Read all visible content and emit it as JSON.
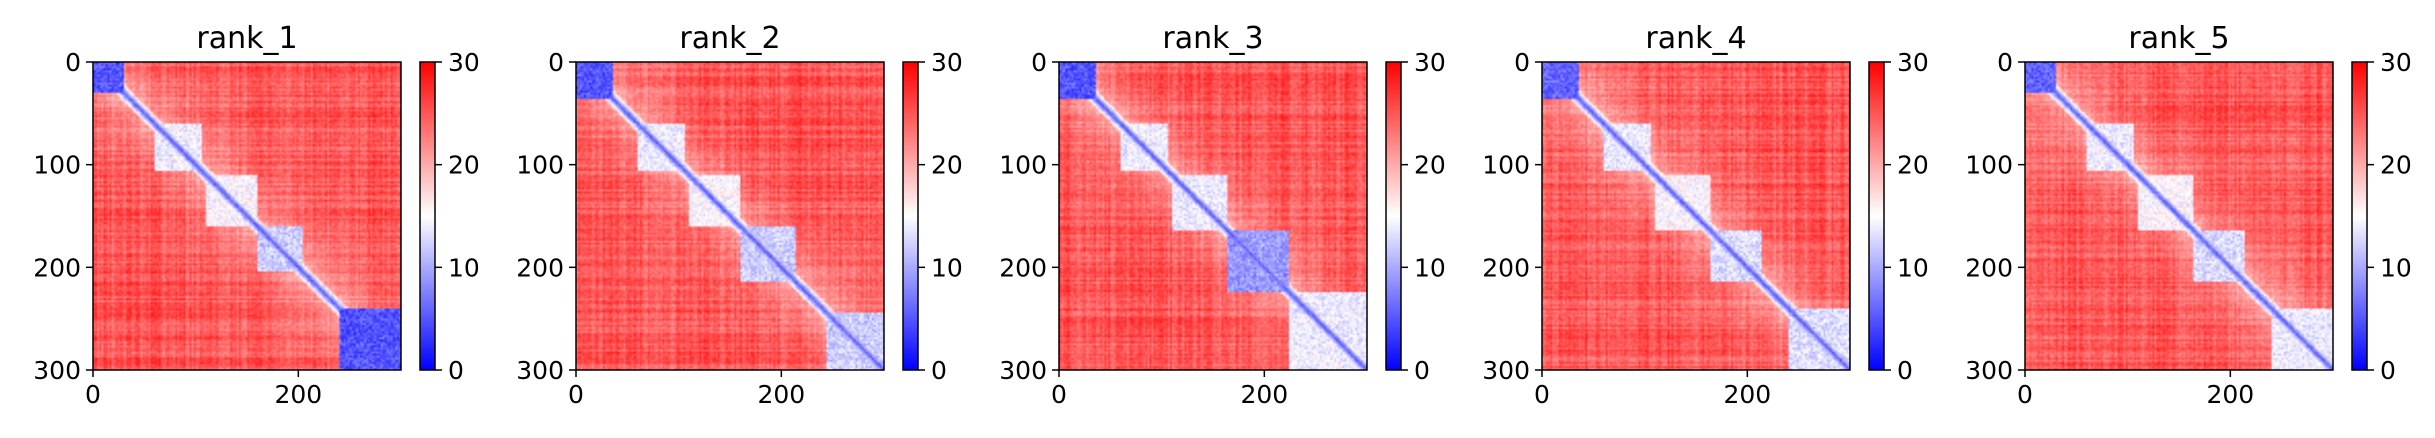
{
  "chart_data": [
    {
      "type": "heatmap",
      "title": "rank_1",
      "x_ticks": [
        "0",
        "200"
      ],
      "y_ticks": [
        "0",
        "100",
        "200",
        "300"
      ],
      "xlim": [
        0,
        300
      ],
      "ylim": [
        0,
        300
      ],
      "colorbar": {
        "ticks": [
          "0",
          "10",
          "20",
          "30"
        ],
        "range": [
          0,
          30
        ],
        "colormap": "bwr"
      },
      "diagonal_value": 0,
      "background_value": 28,
      "structured_regions": [
        {
          "range": [
            0,
            30
          ],
          "value": 3
        },
        {
          "range": [
            60,
            105
          ],
          "value": 12
        },
        {
          "range": [
            110,
            160
          ],
          "value": 13
        },
        {
          "range": [
            160,
            205
          ],
          "value": 10
        },
        {
          "range": [
            240,
            300
          ],
          "value": 3
        }
      ]
    },
    {
      "type": "heatmap",
      "title": "rank_2",
      "x_ticks": [
        "0",
        "200"
      ],
      "y_ticks": [
        "0",
        "100",
        "200",
        "300"
      ],
      "xlim": [
        0,
        300
      ],
      "ylim": [
        0,
        300
      ],
      "colorbar": {
        "ticks": [
          "0",
          "10",
          "20",
          "30"
        ],
        "range": [
          0,
          30
        ],
        "colormap": "bwr"
      },
      "diagonal_value": 0,
      "background_value": 28,
      "structured_regions": [
        {
          "range": [
            0,
            35
          ],
          "value": 3
        },
        {
          "range": [
            60,
            105
          ],
          "value": 12
        },
        {
          "range": [
            110,
            160
          ],
          "value": 13
        },
        {
          "range": [
            160,
            215
          ],
          "value": 10
        },
        {
          "range": [
            245,
            300
          ],
          "value": 10
        }
      ]
    },
    {
      "type": "heatmap",
      "title": "rank_3",
      "x_ticks": [
        "0",
        "200"
      ],
      "y_ticks": [
        "0",
        "100",
        "200",
        "300"
      ],
      "xlim": [
        0,
        300
      ],
      "ylim": [
        0,
        300
      ],
      "colorbar": {
        "ticks": [
          "0",
          "10",
          "20",
          "30"
        ],
        "range": [
          0,
          30
        ],
        "colormap": "bwr"
      },
      "diagonal_value": 0,
      "background_value": 28,
      "structured_regions": [
        {
          "range": [
            0,
            35
          ],
          "value": 3
        },
        {
          "range": [
            60,
            105
          ],
          "value": 12
        },
        {
          "range": [
            110,
            165
          ],
          "value": 12
        },
        {
          "range": [
            165,
            225
          ],
          "value": 7
        },
        {
          "range": [
            225,
            300
          ],
          "value": 12
        }
      ]
    },
    {
      "type": "heatmap",
      "title": "rank_4",
      "x_ticks": [
        "0",
        "200"
      ],
      "y_ticks": [
        "0",
        "100",
        "200",
        "300"
      ],
      "xlim": [
        0,
        300
      ],
      "ylim": [
        0,
        300
      ],
      "colorbar": {
        "ticks": [
          "0",
          "10",
          "20",
          "30"
        ],
        "range": [
          0,
          30
        ],
        "colormap": "bwr"
      },
      "diagonal_value": 0,
      "background_value": 28,
      "structured_regions": [
        {
          "range": [
            0,
            35
          ],
          "value": 4
        },
        {
          "range": [
            60,
            105
          ],
          "value": 12
        },
        {
          "range": [
            110,
            165
          ],
          "value": 13
        },
        {
          "range": [
            165,
            215
          ],
          "value": 11
        },
        {
          "range": [
            240,
            300
          ],
          "value": 11
        }
      ]
    },
    {
      "type": "heatmap",
      "title": "rank_5",
      "x_ticks": [
        "0",
        "200"
      ],
      "y_ticks": [
        "0",
        "100",
        "200",
        "300"
      ],
      "xlim": [
        0,
        300
      ],
      "ylim": [
        0,
        300
      ],
      "colorbar": {
        "ticks": [
          "0",
          "10",
          "20",
          "30"
        ],
        "range": [
          0,
          30
        ],
        "colormap": "bwr"
      },
      "diagonal_value": 0,
      "background_value": 28,
      "structured_regions": [
        {
          "range": [
            0,
            30
          ],
          "value": 4
        },
        {
          "range": [
            60,
            105
          ],
          "value": 12
        },
        {
          "range": [
            110,
            165
          ],
          "value": 13
        },
        {
          "range": [
            165,
            215
          ],
          "value": 11
        },
        {
          "range": [
            240,
            300
          ],
          "value": 12
        }
      ]
    }
  ]
}
